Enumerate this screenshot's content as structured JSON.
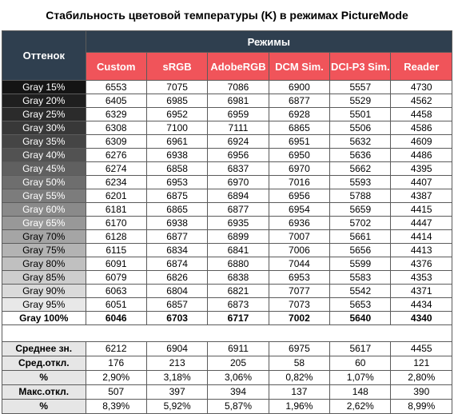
{
  "chart_data": {
    "type": "table",
    "title": "Стабильность цветовой температуры (K) в режимах PictureMode",
    "row_header_label": "Оттенок",
    "group_header_label": "Режимы",
    "modes": [
      "Custom",
      "sRGB",
      "AdobeRGB",
      "DCM Sim.",
      "DCI-P3 Sim.",
      "Reader"
    ],
    "rows": [
      {
        "label": "Gray 15%",
        "shade": "#141414",
        "values": [
          "6553",
          "7075",
          "7086",
          "6900",
          "5557",
          "4730"
        ]
      },
      {
        "label": "Gray 20%",
        "shade": "#1f1f1f",
        "values": [
          "6405",
          "6985",
          "6981",
          "6877",
          "5529",
          "4562"
        ]
      },
      {
        "label": "Gray 25%",
        "shade": "#2b2b2b",
        "values": [
          "6329",
          "6952",
          "6959",
          "6928",
          "5501",
          "4458"
        ]
      },
      {
        "label": "Gray 30%",
        "shade": "#383838",
        "values": [
          "6308",
          "7100",
          "7111",
          "6865",
          "5506",
          "4586"
        ]
      },
      {
        "label": "Gray 35%",
        "shade": "#454545",
        "values": [
          "6309",
          "6961",
          "6924",
          "6951",
          "5632",
          "4609"
        ]
      },
      {
        "label": "Gray 40%",
        "shade": "#525252",
        "values": [
          "6276",
          "6938",
          "6956",
          "6950",
          "5636",
          "4486"
        ]
      },
      {
        "label": "Gray 45%",
        "shade": "#606060",
        "values": [
          "6274",
          "6858",
          "6837",
          "6970",
          "5662",
          "4395"
        ]
      },
      {
        "label": "Gray 50%",
        "shade": "#6e6e6e",
        "values": [
          "6234",
          "6953",
          "6970",
          "7016",
          "5593",
          "4407"
        ]
      },
      {
        "label": "Gray 55%",
        "shade": "#7c7c7c",
        "values": [
          "6201",
          "6875",
          "6894",
          "6956",
          "5788",
          "4387"
        ]
      },
      {
        "label": "Gray 60%",
        "shade": "#8a8a8a",
        "values": [
          "6181",
          "6865",
          "6877",
          "6954",
          "5659",
          "4415"
        ]
      },
      {
        "label": "Gray 65%",
        "shade": "#989898",
        "values": [
          "6170",
          "6938",
          "6935",
          "6936",
          "5702",
          "4447"
        ]
      },
      {
        "label": "Gray 70%",
        "shade": "#a5a5a5",
        "values": [
          "6128",
          "6877",
          "6899",
          "7007",
          "5661",
          "4414"
        ]
      },
      {
        "label": "Gray 75%",
        "shade": "#b3b3b3",
        "values": [
          "6115",
          "6834",
          "6841",
          "7006",
          "5656",
          "4413"
        ]
      },
      {
        "label": "Gray 80%",
        "shade": "#c0c0c0",
        "values": [
          "6091",
          "6874",
          "6880",
          "7044",
          "5599",
          "4376"
        ]
      },
      {
        "label": "Gray 85%",
        "shade": "#cdcdcd",
        "values": [
          "6079",
          "6826",
          "6838",
          "6953",
          "5583",
          "4353"
        ]
      },
      {
        "label": "Gray 90%",
        "shade": "#dadada",
        "values": [
          "6063",
          "6804",
          "6821",
          "7077",
          "5542",
          "4371"
        ]
      },
      {
        "label": "Gray 95%",
        "shade": "#e8e8e8",
        "values": [
          "6051",
          "6857",
          "6873",
          "7073",
          "5653",
          "4434"
        ]
      },
      {
        "label": "Gray 100%",
        "shade": "#ffffff",
        "values": [
          "6046",
          "6703",
          "6717",
          "7002",
          "5640",
          "4340"
        ]
      }
    ],
    "stats": [
      {
        "label": "Среднее зн.",
        "values": [
          "6212",
          "6904",
          "6911",
          "6975",
          "5617",
          "4455"
        ]
      },
      {
        "label": "Сред.откл.",
        "values": [
          "176",
          "213",
          "205",
          "58",
          "60",
          "121"
        ]
      },
      {
        "label": "%",
        "values": [
          "2,90%",
          "3,18%",
          "3,06%",
          "0,82%",
          "1,07%",
          "2,80%"
        ]
      },
      {
        "label": "Макс.откл.",
        "values": [
          "507",
          "397",
          "394",
          "137",
          "148",
          "390"
        ]
      },
      {
        "label": "%",
        "values": [
          "8,39%",
          "5,92%",
          "5,87%",
          "1,96%",
          "2,62%",
          "8,99%"
        ]
      }
    ]
  },
  "colors": {
    "header_dark": "#2f3f4f",
    "header_red": "#f0545a",
    "stat_label_bg": "#e6e6e6"
  }
}
